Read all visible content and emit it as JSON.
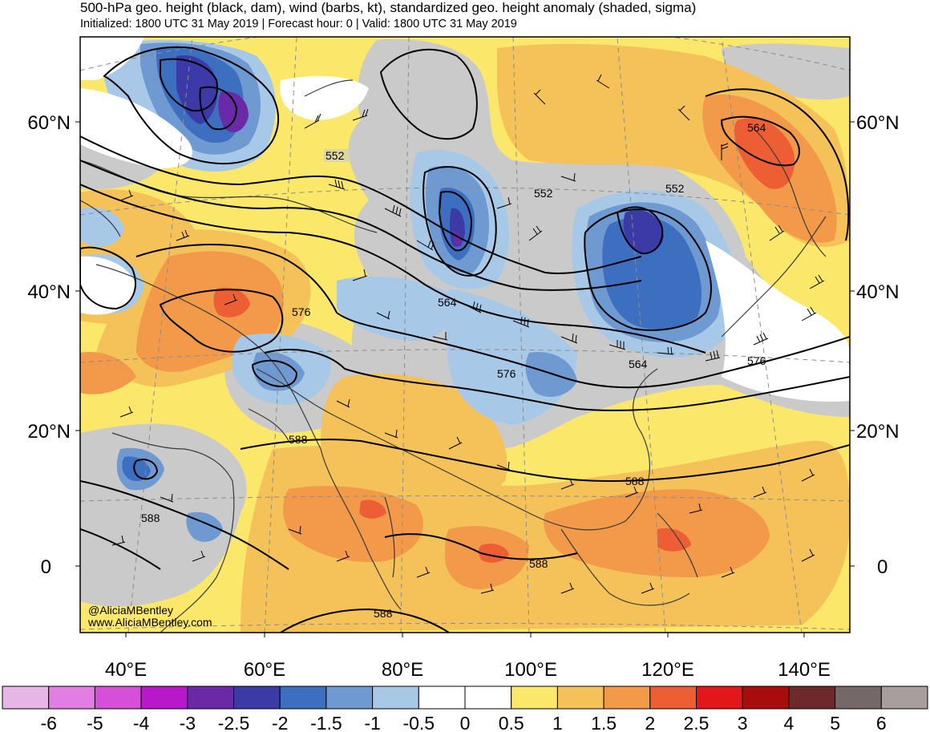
{
  "header": {
    "title": "500-hPa geo. height (black, dam), wind (barbs, kt), standardized geo. height anomaly (shaded, sigma)",
    "subtitle": "Initialized: 1800 UTC 31 May 2019 | Forecast hour: 0 | Valid: 1800 UTC 31 May 2019"
  },
  "map": {
    "lat_labels": [
      "60°N",
      "40°N",
      "20°N",
      "0"
    ],
    "lon_labels": [
      "40°E",
      "60°E",
      "80°E",
      "100°E",
      "120°E",
      "140°E"
    ],
    "contour_labels": [
      "552",
      "552",
      "552",
      "564",
      "564",
      "564",
      "576",
      "576",
      "576",
      "588",
      "588",
      "588",
      "588",
      "588"
    ],
    "credit": [
      "@AliciaMBentley",
      "www.AliciaMBentley.com"
    ]
  },
  "colorbar": {
    "colors": [
      "#e8b6e6",
      "#e27ee3",
      "#d64fd8",
      "#b818c9",
      "#6a2aa8",
      "#3c3aa6",
      "#3d6fc0",
      "#6f99d1",
      "#a7c8e6",
      "#ffffff",
      "#ffffff",
      "#fbe86a",
      "#f5c25a",
      "#f29a4a",
      "#ee5e34",
      "#e3161a",
      "#a80c0c",
      "#6e2a2a",
      "#756868",
      "#a89e9e"
    ],
    "labels": [
      "-6",
      "-5",
      "-4",
      "-3",
      "-2.5",
      "-2",
      "-1.5",
      "-1",
      "-0.5",
      "0",
      "0.5",
      "1",
      "1.5",
      "2",
      "2.5",
      "3",
      "4",
      "5",
      "6"
    ]
  },
  "palette": {
    "gray": "#cacaca",
    "yellow": "#fbe86a",
    "lightorange": "#f5c25a",
    "orange": "#f29a4a",
    "redorange": "#ee5e34",
    "lightblue": "#a7c8e6",
    "blue": "#6f99d1",
    "midblue": "#3d6fc0",
    "darkblue": "#3c3aa6",
    "purple": "#6a2aa8"
  }
}
